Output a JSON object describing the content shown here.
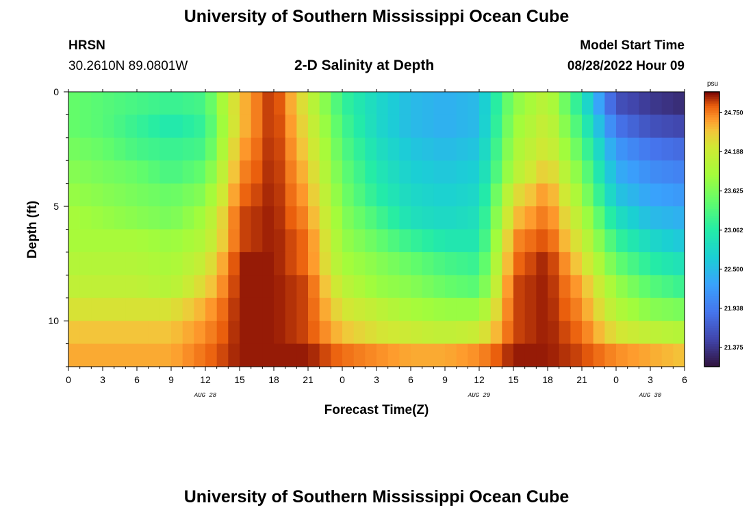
{
  "title": "University of Southern Mississippi Ocean Cube",
  "title_bottom": "University of Southern Mississippi Ocean Cube",
  "station": {
    "name": "HRSN",
    "coords": "30.2610N  89.0801W"
  },
  "model": {
    "label": "Model Start Time",
    "time": "08/28/2022 Hour 09"
  },
  "chart_data": {
    "type": "heatmap",
    "title": "2-D Salinity at Depth",
    "xlabel": "Forecast Time(Z)",
    "ylabel": "Depth (ft)",
    "x_range_hours": [
      0,
      54
    ],
    "y_range_ft": [
      0,
      12
    ],
    "x_tick_labels": [
      "0",
      "3",
      "6",
      "9",
      "12",
      "15",
      "18",
      "21",
      "0",
      "3",
      "6",
      "9",
      "12",
      "15",
      "18",
      "21",
      "0",
      "3",
      "6"
    ],
    "y_ticks": [
      0,
      5,
      10
    ],
    "y_tick_labels": [
      "0",
      "5",
      "10"
    ],
    "date_labels": [
      {
        "text": "AUG 28",
        "at_hour": 12
      },
      {
        "text": "AUG 29",
        "at_hour": 36
      },
      {
        "text": "AUG 30",
        "at_hour": 51
      }
    ],
    "colorbar": {
      "unit": "psu",
      "min": 21.1,
      "max": 25.05,
      "ticks": [
        21.375,
        21.938,
        22.5,
        23.062,
        23.625,
        24.188,
        24.75
      ],
      "tick_labels": [
        "21.375",
        "21.938",
        "22.500",
        "23.062",
        "23.625",
        "24.188",
        "24.750"
      ]
    },
    "depth_levels_ft": [
      0.5,
      1.5,
      2.5,
      3.5,
      4.5,
      5.5,
      6.5,
      7.5,
      8.5,
      9.5,
      10.5,
      11.5
    ],
    "time_hours": [
      0,
      3,
      6,
      9,
      12,
      15,
      18,
      21,
      24,
      27,
      30,
      33,
      36,
      39,
      42,
      45,
      48,
      51,
      54
    ],
    "salinity_psu": [
      [
        23.5,
        23.4,
        23.3,
        23.2,
        23.3,
        24.5,
        25.0,
        24.2,
        23.2,
        22.8,
        22.5,
        22.4,
        22.5,
        23.7,
        24.1,
        23.0,
        21.6,
        21.4,
        21.3
      ],
      [
        23.5,
        23.4,
        23.2,
        23.0,
        23.2,
        24.5,
        25.0,
        24.3,
        23.3,
        22.8,
        22.5,
        22.4,
        22.5,
        23.8,
        24.2,
        23.2,
        21.9,
        21.6,
        21.5
      ],
      [
        23.6,
        23.5,
        23.3,
        23.2,
        23.3,
        24.6,
        25.0,
        24.4,
        23.4,
        22.9,
        22.6,
        22.5,
        22.6,
        23.9,
        24.3,
        23.4,
        22.2,
        21.9,
        21.8
      ],
      [
        23.7,
        23.6,
        23.5,
        23.3,
        23.5,
        24.7,
        25.0,
        24.5,
        23.5,
        23.0,
        22.7,
        22.6,
        22.7,
        24.0,
        24.5,
        23.6,
        22.4,
        22.1,
        22.0
      ],
      [
        23.8,
        23.7,
        23.6,
        23.5,
        23.7,
        24.8,
        25.0,
        24.6,
        23.6,
        23.1,
        22.8,
        22.7,
        22.8,
        24.3,
        24.7,
        23.8,
        22.6,
        22.3,
        22.2
      ],
      [
        23.9,
        23.8,
        23.7,
        23.6,
        23.9,
        24.9,
        25.0,
        24.7,
        23.7,
        23.3,
        22.9,
        22.8,
        22.9,
        24.5,
        24.8,
        24.0,
        22.9,
        22.5,
        22.4
      ],
      [
        23.9,
        23.9,
        23.9,
        23.8,
        24.0,
        24.9,
        25.0,
        24.8,
        23.8,
        23.5,
        23.2,
        23.0,
        23.0,
        24.7,
        24.9,
        24.2,
        23.2,
        22.8,
        22.6
      ],
      [
        24.0,
        24.0,
        24.0,
        23.9,
        24.2,
        25.0,
        25.0,
        24.8,
        23.9,
        23.7,
        23.5,
        23.3,
        23.2,
        24.8,
        25.0,
        24.4,
        23.5,
        23.1,
        22.9
      ],
      [
        24.1,
        24.1,
        24.1,
        24.0,
        24.4,
        25.0,
        25.0,
        24.9,
        24.1,
        23.8,
        23.7,
        23.5,
        23.4,
        24.9,
        25.0,
        24.6,
        23.8,
        23.4,
        23.2
      ],
      [
        24.3,
        24.3,
        24.3,
        24.3,
        24.6,
        25.0,
        25.0,
        24.9,
        24.3,
        24.1,
        23.9,
        23.8,
        23.8,
        24.9,
        25.0,
        24.7,
        24.0,
        23.7,
        23.6
      ],
      [
        24.5,
        24.5,
        24.5,
        24.5,
        24.7,
        25.0,
        25.0,
        24.9,
        24.5,
        24.3,
        24.2,
        24.1,
        24.2,
        24.9,
        25.0,
        24.8,
        24.3,
        24.1,
        24.0
      ],
      [
        24.6,
        24.6,
        24.6,
        24.6,
        24.8,
        25.0,
        25.0,
        25.0,
        24.8,
        24.7,
        24.6,
        24.6,
        24.7,
        25.0,
        25.0,
        24.9,
        24.7,
        24.6,
        24.5
      ]
    ]
  }
}
